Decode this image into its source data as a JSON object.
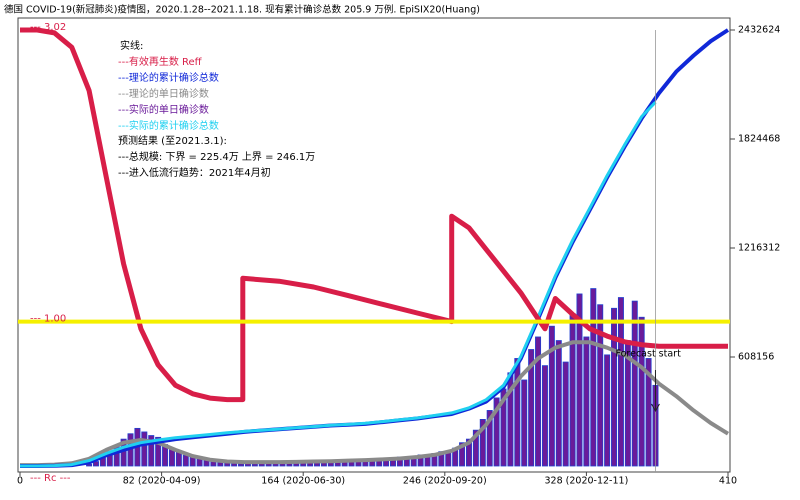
{
  "chart_data": {
    "type": "line",
    "title": "德国 COVID-19(新冠肺炎)疫情图，2020.1.28--2021.1.18. 现有累计确诊总数 205.9 万例.   EpiSIX20(Huang)",
    "xlim": [
      0,
      410
    ],
    "xticks": [
      0,
      {
        "value": 82,
        "label": "82 (2020-04-09)"
      },
      {
        "value": 164,
        "label": "164 (2020-06-30)"
      },
      {
        "value": 246,
        "label": "246 (2020-09-20)"
      },
      {
        "value": 328,
        "label": "328 (2020-12-11)"
      },
      410
    ],
    "ylim": [
      0,
      2432624
    ],
    "yticks": [
      608156,
      1216312,
      1824468,
      2432624
    ],
    "y2lim": [
      0,
      3.02
    ],
    "y2ticks": [
      {
        "value": 3.02,
        "label": "--- 3.02"
      },
      {
        "value": 1.0,
        "label": "--- 1.00"
      }
    ],
    "y2_label": "--- Rc ---",
    "reference_line": {
      "value": 1.0,
      "axis": "y2",
      "color": "#f5f000"
    },
    "forecast": {
      "x": 368,
      "label": "Forecast start"
    },
    "legend_title": "实线:",
    "notes": [
      "预测结果 (至2021.3.1):",
      "---总规模: 下界 = 225.4万 上界 = 246.1万",
      " ---进入低流行趋势：2021年4月初"
    ],
    "series": [
      {
        "name": "---实际的单日确诊数",
        "type": "bar",
        "color": "#6a1b9a",
        "edge": "#2040d0",
        "x": [
          40,
          44,
          48,
          52,
          56,
          60,
          64,
          68,
          72,
          76,
          80,
          84,
          88,
          92,
          96,
          100,
          104,
          108,
          112,
          116,
          120,
          124,
          128,
          132,
          136,
          140,
          144,
          148,
          152,
          156,
          160,
          164,
          168,
          172,
          176,
          180,
          184,
          188,
          192,
          196,
          200,
          204,
          208,
          212,
          216,
          220,
          224,
          228,
          232,
          236,
          240,
          244,
          248,
          252,
          256,
          260,
          264,
          268,
          272,
          276,
          280,
          284,
          288,
          292,
          296,
          300,
          304,
          308,
          312,
          316,
          320,
          324,
          328,
          332,
          336,
          340,
          344,
          348,
          352,
          356,
          360,
          364,
          368
        ],
        "values": [
          10000,
          25000,
          45000,
          80000,
          110000,
          150000,
          180000,
          210000,
          190000,
          170000,
          160000,
          120000,
          100000,
          80000,
          60000,
          50000,
          40000,
          35000,
          25000,
          20000,
          18000,
          15000,
          12000,
          14000,
          12000,
          15000,
          14000,
          16000,
          15000,
          18000,
          16000,
          20000,
          22000,
          25000,
          20000,
          28000,
          30000,
          26000,
          32000,
          35000,
          30000,
          38000,
          42000,
          36000,
          45000,
          50000,
          44000,
          55000,
          62000,
          58000,
          70000,
          80000,
          75000,
          100000,
          130000,
          150000,
          200000,
          260000,
          310000,
          380000,
          430000,
          520000,
          600000,
          480000,
          650000,
          720000,
          560000,
          780000,
          700000,
          580000,
          850000,
          960000,
          720000,
          990000,
          900000,
          620000,
          880000,
          940000,
          700000,
          920000,
          830000,
          600000,
          450000
        ]
      },
      {
        "name": "---理论的单日确诊数",
        "type": "line",
        "color": "#8a8a8a",
        "width": 4,
        "x": [
          0,
          10,
          20,
          30,
          40,
          50,
          60,
          70,
          80,
          90,
          100,
          110,
          120,
          130,
          140,
          150,
          160,
          170,
          180,
          190,
          200,
          210,
          220,
          230,
          240,
          250,
          260,
          270,
          280,
          290,
          300,
          310,
          320,
          330,
          340,
          350,
          360,
          370,
          380,
          390,
          400,
          410
        ],
        "values": [
          5000,
          5000,
          8000,
          15000,
          40000,
          90000,
          130000,
          145000,
          130000,
          90000,
          55000,
          35000,
          25000,
          22000,
          22000,
          22000,
          23000,
          25000,
          27000,
          30000,
          33000,
          37000,
          42000,
          50000,
          62000,
          85000,
          130000,
          230000,
          370000,
          500000,
          600000,
          660000,
          690000,
          690000,
          660000,
          620000,
          550000,
          460000,
          390000,
          310000,
          240000,
          180000
        ]
      },
      {
        "name": "---理论的累计确诊总数",
        "type": "line",
        "color": "#1028d8",
        "width": 4,
        "x": [
          0,
          10,
          20,
          30,
          40,
          50,
          60,
          70,
          80,
          90,
          100,
          110,
          120,
          130,
          140,
          150,
          160,
          170,
          180,
          190,
          200,
          210,
          220,
          230,
          240,
          250,
          260,
          270,
          280,
          290,
          300,
          310,
          320,
          330,
          340,
          350,
          360,
          370,
          380,
          390,
          400,
          410
        ],
        "values": [
          0,
          0,
          1000,
          5000,
          20000,
          60000,
          90000,
          120000,
          135000,
          150000,
          160000,
          170000,
          180000,
          190000,
          198000,
          205000,
          212000,
          219000,
          226000,
          230000,
          235000,
          245000,
          255000,
          265000,
          278000,
          290000,
          320000,
          360000,
          440000,
          600000,
          820000,
          1050000,
          1250000,
          1430000,
          1610000,
          1780000,
          1940000,
          2080000,
          2200000,
          2290000,
          2370000,
          2432624
        ]
      },
      {
        "name": "---实际的累计确诊总数",
        "type": "line",
        "color": "#20d0f0",
        "width": 3,
        "x": [
          0,
          10,
          20,
          30,
          40,
          50,
          60,
          70,
          80,
          90,
          100,
          110,
          120,
          130,
          140,
          150,
          160,
          170,
          180,
          190,
          200,
          210,
          220,
          230,
          240,
          250,
          260,
          270,
          280,
          290,
          300,
          310,
          320,
          330,
          340,
          350,
          360,
          368
        ],
        "values": [
          0,
          0,
          2000,
          8000,
          30000,
          70000,
          105000,
          130000,
          145000,
          158000,
          167000,
          176000,
          185000,
          193000,
          200000,
          206000,
          213000,
          220000,
          227000,
          232000,
          238000,
          248000,
          258000,
          268000,
          282000,
          296000,
          325000,
          370000,
          450000,
          610000,
          830000,
          1060000,
          1260000,
          1440000,
          1620000,
          1790000,
          1950000,
          2030000
        ]
      },
      {
        "name": "---有效再生数 Reff",
        "type": "line",
        "axis": "y2",
        "color": "#d81e48",
        "width": 5,
        "x": [
          0,
          10,
          20,
          30,
          40,
          50,
          60,
          70,
          80,
          90,
          100,
          110,
          120,
          129,
          129,
          150,
          170,
          190,
          210,
          230,
          250,
          250,
          260,
          270,
          280,
          290,
          300,
          304,
          310,
          320,
          330,
          340,
          350,
          360,
          370,
          410
        ],
        "values": [
          3.02,
          3.02,
          3.0,
          2.9,
          2.6,
          2.0,
          1.4,
          0.95,
          0.7,
          0.56,
          0.5,
          0.47,
          0.46,
          0.46,
          1.3,
          1.28,
          1.24,
          1.18,
          1.12,
          1.06,
          1.0,
          1.73,
          1.65,
          1.5,
          1.35,
          1.2,
          1.02,
          0.95,
          1.16,
          1.05,
          0.95,
          0.9,
          0.86,
          0.84,
          0.83,
          0.83
        ]
      }
    ]
  }
}
